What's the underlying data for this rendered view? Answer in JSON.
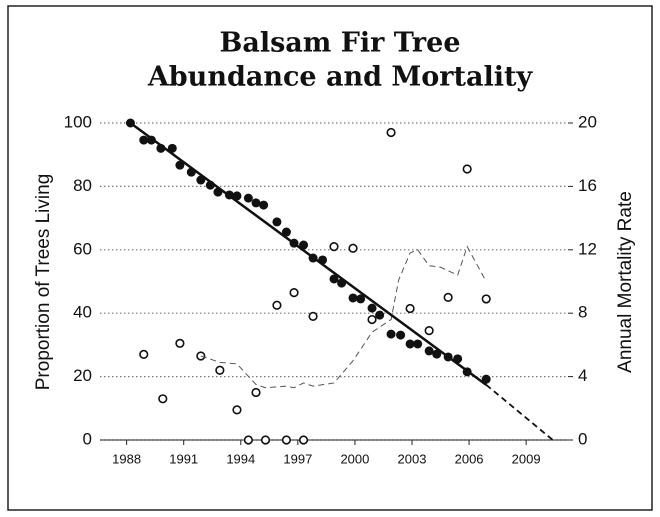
{
  "chart_data": {
    "type": "scatter",
    "title_lines": [
      "Balsam Fir Tree",
      "Abundance and Mortality"
    ],
    "ylabel": "Proportion of Trees Living",
    "y2label": "Annual Mortality Rate",
    "xlim": [
      1986.6,
      2011.2
    ],
    "xticks": [
      1988,
      1991,
      1994,
      1997,
      2000,
      2003,
      2006,
      2009
    ],
    "ylim": [
      0,
      100
    ],
    "yticks": [
      0,
      20,
      40,
      60,
      80,
      100
    ],
    "y2lim": [
      0,
      20
    ],
    "y2ticks": [
      0,
      4,
      8,
      12,
      16,
      20
    ],
    "grid": true,
    "series": [
      {
        "type": "scatter",
        "marker": "filled",
        "color": "#111111",
        "x": [
          1988.2,
          1988.9,
          1989.3,
          1989.8,
          1990.4,
          1990.8,
          1991.4,
          1991.9,
          1992.4,
          1992.8,
          1993.4,
          1993.8,
          1994.4,
          1994.8,
          1995.2,
          1995.9,
          1996.4,
          1996.8,
          1997.3,
          1997.8,
          1998.3,
          1998.9,
          1999.3,
          1999.9,
          2000.3,
          2000.9,
          2001.3,
          2001.9,
          2002.4,
          2002.9,
          2003.3,
          2003.9,
          2004.3,
          2004.9,
          2005.4,
          2005.9,
          2006.9
        ],
        "values": [
          100,
          94.6,
          94.6,
          92,
          92,
          86.7,
          84.5,
          82,
          80.4,
          78.2,
          77.3,
          77,
          76.3,
          74.8,
          74.1,
          68.8,
          65.6,
          62.1,
          61.5,
          57.4,
          56.8,
          50.8,
          49.5,
          44.8,
          44.5,
          41.6,
          39.4,
          33.4,
          33.1,
          30.3,
          30.3,
          28.1,
          27.1,
          26.2,
          25.6,
          21.5,
          19.2
        ]
      },
      {
        "type": "scatter",
        "marker": "open",
        "axis": "y2",
        "color": "#111111",
        "x": [
          1988.9,
          1989.9,
          1990.8,
          1991.9,
          1992.9,
          1993.8,
          1994.4,
          1994.8,
          1995.3,
          1995.9,
          1996.4,
          1996.8,
          1997.3,
          1997.8,
          1998.9,
          1999.9,
          2000.9,
          2001.9,
          2002.9,
          2003.9,
          2004.9,
          2005.9,
          2006.9
        ],
        "values": [
          5.4,
          2.6,
          6.1,
          5.3,
          4.4,
          1.9,
          0,
          3.0,
          0,
          8.5,
          0,
          9.3,
          0,
          7.8,
          12.2,
          12.1,
          7.6,
          19.4,
          8.3,
          6.9,
          9.0,
          17.1,
          8.9
        ]
      },
      {
        "type": "line",
        "axis": "y2",
        "dash": true,
        "width": 1,
        "color": "#555555",
        "x": [
          1991.9,
          1992.9,
          1993.8,
          1994.8,
          1995.3,
          1996.4,
          1996.8,
          1997.3,
          1997.8,
          1998.9,
          1999.9,
          2000.9,
          2001.9,
          2002.3,
          2002.9,
          2003.3,
          2003.9,
          2004.5,
          2005.4,
          2005.9,
          2006.9
        ],
        "values": [
          5.3,
          4.9,
          4.8,
          3.5,
          3.3,
          3.4,
          3.3,
          3.6,
          3.4,
          3.6,
          5.0,
          6.8,
          7.6,
          10.1,
          11.8,
          12.0,
          11.0,
          10.9,
          10.4,
          12.2,
          10.0
        ]
      },
      {
        "type": "line",
        "dash": false,
        "width": 2.5,
        "color": "#111111",
        "x": [
          1988.2,
          2006.9
        ],
        "values": [
          100,
          17.4
        ]
      },
      {
        "type": "line",
        "dash": true,
        "width": 1.8,
        "color": "#111111",
        "x": [
          2006.9,
          2010.4
        ],
        "values": [
          17.4,
          0
        ]
      }
    ]
  }
}
